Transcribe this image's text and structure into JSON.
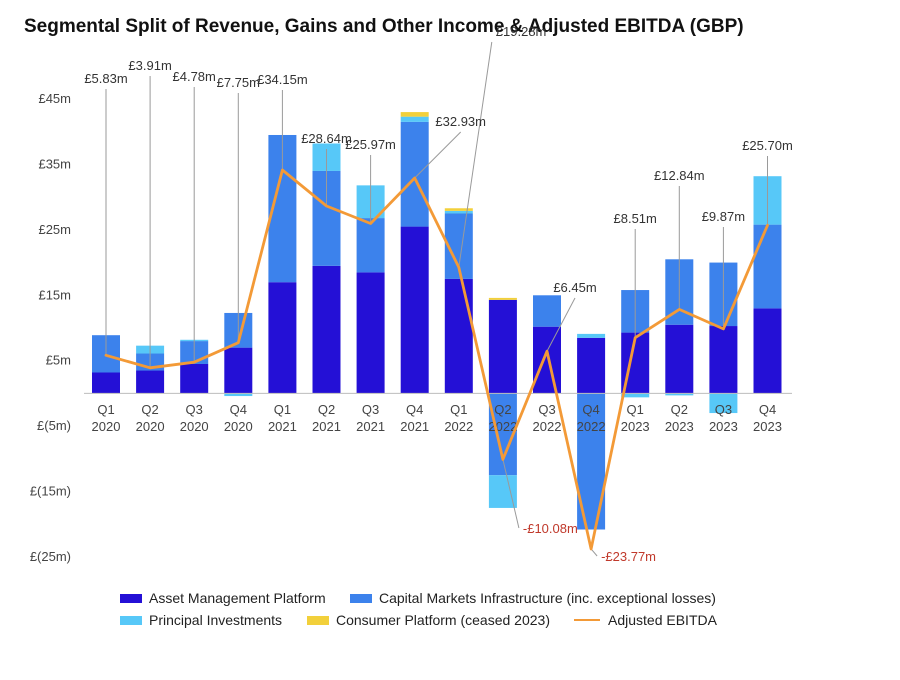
{
  "chart_data": {
    "type": "bar",
    "title": "Segmental Split of Revenue, Gains and Other Income & Adjusted EBITDA (GBP)",
    "stacked": true,
    "ylim": [
      -25,
      45
    ],
    "ytick_values": [
      45,
      35,
      25,
      15,
      5,
      -5,
      -15,
      -25
    ],
    "ytick_labels": [
      "£45m",
      "£35m",
      "£25m",
      "£15m",
      "£5m",
      "£(5m)",
      "£(15m)",
      "£(25m)"
    ],
    "categories": [
      [
        "Q1",
        "2020"
      ],
      [
        "Q2",
        "2020"
      ],
      [
        "Q3",
        "2020"
      ],
      [
        "Q4",
        "2020"
      ],
      [
        "Q1",
        "2021"
      ],
      [
        "Q2",
        "2021"
      ],
      [
        "Q3",
        "2021"
      ],
      [
        "Q4",
        "2021"
      ],
      [
        "Q1",
        "2022"
      ],
      [
        "Q2",
        "2022"
      ],
      [
        "Q3",
        "2022"
      ],
      [
        "Q4",
        "2022"
      ],
      [
        "Q1",
        "2023"
      ],
      [
        "Q2",
        "2023"
      ],
      [
        "Q3",
        "2023"
      ],
      [
        "Q4",
        "2023"
      ]
    ],
    "series": [
      {
        "name": "Asset Management Platform",
        "color": "#2410d6",
        "values": [
          3.2,
          3.5,
          4.5,
          7.0,
          17.0,
          19.5,
          18.5,
          25.5,
          17.5,
          14.3,
          10.2,
          8.5,
          9.3,
          10.5,
          10.3,
          13.0
        ]
      },
      {
        "name": "Capital Markets Infrastructure (inc. exceptional losses)",
        "color": "#3c82ec",
        "values": [
          5.7,
          2.6,
          3.5,
          5.3,
          22.5,
          14.5,
          8.3,
          16.0,
          10.0,
          -12.5,
          4.8,
          -20.8,
          6.5,
          10.0,
          9.7,
          12.8
        ]
      },
      {
        "name": "Principal Investments",
        "color": "#57c8f8",
        "values": [
          0,
          1.2,
          0.2,
          -0.4,
          0,
          4.2,
          5.0,
          0.8,
          0.4,
          -5.0,
          0,
          0.6,
          -0.6,
          -0.3,
          -3.0,
          7.4
        ]
      },
      {
        "name": "Consumer Platform (ceased 2023)",
        "color": "#f2d03b",
        "values": [
          0,
          0,
          0,
          0,
          0,
          0,
          0,
          0.7,
          0.4,
          0.3,
          0,
          0,
          0,
          0,
          0,
          0
        ]
      }
    ],
    "line": {
      "name": "Adjusted EBITDA",
      "color": "#f39a37",
      "values": [
        5.83,
        3.91,
        4.78,
        7.75,
        34.15,
        28.64,
        25.97,
        32.93,
        19.28,
        -10.08,
        6.45,
        -23.77,
        8.51,
        12.84,
        9.87,
        25.7
      ],
      "labels": [
        "£5.83m",
        "£3.91m",
        "£4.78m",
        "£7.75m",
        "£34.15m",
        "£28.64m",
        "£25.97m",
        "£32.93m",
        "£19.28m",
        "-£10.08m",
        "£6.45m",
        "-£23.77m",
        "£8.51m",
        "£12.84m",
        "£9.87m",
        "£25.70m"
      ]
    },
    "legend_order": [
      "Asset Management Platform",
      "Capital Markets Infrastructure (inc. exceptional losses)",
      "Principal Investments",
      "Consumer Platform (ceased 2023)",
      "Adjusted EBITDA"
    ],
    "legend_position": "bottom",
    "grid": false
  }
}
